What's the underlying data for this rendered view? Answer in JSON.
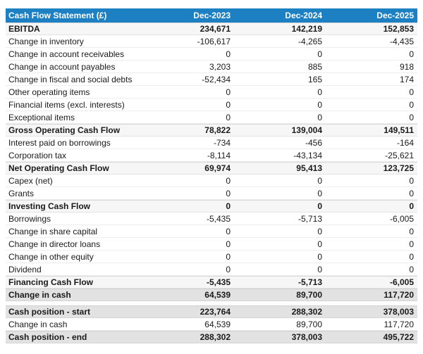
{
  "table": {
    "title": "Cash Flow Statement (£)",
    "columns": [
      "Dec-2023",
      "Dec-2024",
      "Dec-2025"
    ],
    "colors": {
      "header_bg": "#1d80c3",
      "header_text": "#ffffff",
      "total_light_bg": "#f6f6f6",
      "total_dark_bg": "#e2e2e2"
    },
    "rows": [
      {
        "label": "EBITDA",
        "values": [
          "234,671",
          "142,219",
          "152,853"
        ],
        "style": "total-light"
      },
      {
        "label": "Change in inventory",
        "values": [
          "-106,617",
          "-4,265",
          "-4,435"
        ],
        "style": "regular"
      },
      {
        "label": "Change in account receivables",
        "values": [
          "0",
          "0",
          "0"
        ],
        "style": "regular"
      },
      {
        "label": "Change in account payables",
        "values": [
          "3,203",
          "885",
          "918"
        ],
        "style": "regular"
      },
      {
        "label": "Change in fiscal and social debts",
        "values": [
          "-52,434",
          "165",
          "174"
        ],
        "style": "regular"
      },
      {
        "label": "Other operating items",
        "values": [
          "0",
          "0",
          "0"
        ],
        "style": "regular"
      },
      {
        "label": "Financial items (excl. interests)",
        "values": [
          "0",
          "0",
          "0"
        ],
        "style": "regular"
      },
      {
        "label": "Exceptional items",
        "values": [
          "0",
          "0",
          "0"
        ],
        "style": "regular"
      },
      {
        "label": "Gross Operating Cash Flow",
        "values": [
          "78,822",
          "139,004",
          "149,511"
        ],
        "style": "total-light"
      },
      {
        "label": "Interest paid on borrowings",
        "values": [
          "-734",
          "-456",
          "-164"
        ],
        "style": "regular"
      },
      {
        "label": "Corporation tax",
        "values": [
          "-8,114",
          "-43,134",
          "-25,621"
        ],
        "style": "regular"
      },
      {
        "label": "Net Operating Cash Flow",
        "values": [
          "69,974",
          "95,413",
          "123,725"
        ],
        "style": "total-light"
      },
      {
        "label": "Capex (net)",
        "values": [
          "0",
          "0",
          "0"
        ],
        "style": "regular"
      },
      {
        "label": "Grants",
        "values": [
          "0",
          "0",
          "0"
        ],
        "style": "regular"
      },
      {
        "label": "Investing Cash Flow",
        "values": [
          "0",
          "0",
          "0"
        ],
        "style": "total-light"
      },
      {
        "label": "Borrowings",
        "values": [
          "-5,435",
          "-5,713",
          "-6,005"
        ],
        "style": "regular"
      },
      {
        "label": "Change in share capital",
        "values": [
          "0",
          "0",
          "0"
        ],
        "style": "regular"
      },
      {
        "label": "Change in director loans",
        "values": [
          "0",
          "0",
          "0"
        ],
        "style": "regular"
      },
      {
        "label": "Change in other equity",
        "values": [
          "0",
          "0",
          "0"
        ],
        "style": "regular"
      },
      {
        "label": "Dividend",
        "values": [
          "0",
          "0",
          "0"
        ],
        "style": "regular"
      },
      {
        "label": "Financing Cash Flow",
        "values": [
          "-5,435",
          "-5,713",
          "-6,005"
        ],
        "style": "total-light"
      },
      {
        "label": "Change in cash",
        "values": [
          "64,539",
          "89,700",
          "117,720"
        ],
        "style": "total-dark"
      },
      {
        "label": "Cash position - start",
        "values": [
          "223,764",
          "288,302",
          "378,003"
        ],
        "style": "total-dark",
        "gap_before": true
      },
      {
        "label": "Change in cash",
        "values": [
          "64,539",
          "89,700",
          "117,720"
        ],
        "style": "regular"
      },
      {
        "label": "Cash position - end",
        "values": [
          "288,302",
          "378,003",
          "495,722"
        ],
        "style": "total-dark"
      }
    ]
  }
}
